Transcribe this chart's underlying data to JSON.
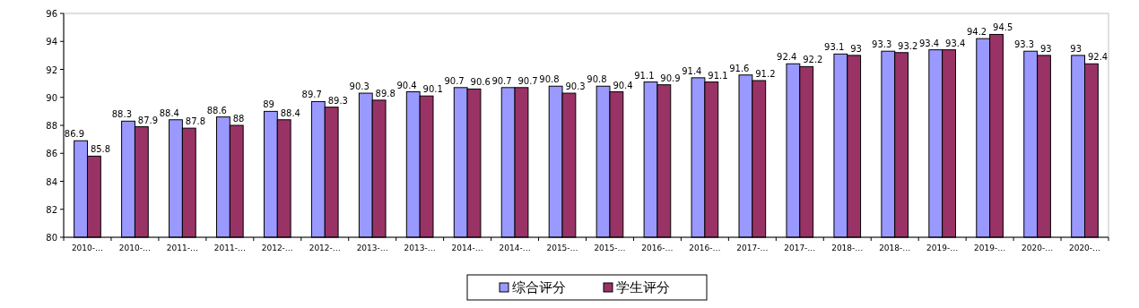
{
  "chart_data": {
    "type": "bar",
    "categories": [
      "2010-…",
      "2010-…",
      "2011-…",
      "2011-…",
      "2012-…",
      "2012-…",
      "2013-…",
      "2013-…",
      "2014-…",
      "2014-…",
      "2015-…",
      "2015-…",
      "2016-…",
      "2016-…",
      "2017-…",
      "2017-…",
      "2018-…",
      "2018-…",
      "2019-…",
      "2019-…",
      "2020-…",
      "2020-…"
    ],
    "series": [
      {
        "name": "综合评分",
        "color": "#9999ff",
        "values": [
          86.9,
          88.3,
          88.4,
          88.6,
          89,
          89.7,
          90.3,
          90.4,
          90.7,
          90.7,
          90.8,
          90.8,
          91.1,
          91.4,
          91.6,
          92.4,
          93.1,
          93.3,
          93.4,
          94.2,
          93.3,
          93
        ]
      },
      {
        "name": "学生评分",
        "color": "#993366",
        "values": [
          85.8,
          87.9,
          87.8,
          88,
          88.4,
          89.3,
          89.8,
          90.1,
          90.6,
          90.7,
          90.3,
          90.4,
          90.9,
          91.1,
          91.2,
          92.2,
          93,
          93.2,
          93.4,
          94.5,
          93,
          92.4
        ]
      }
    ],
    "ylim": [
      80,
      96
    ],
    "yticks": [
      80,
      82,
      84,
      86,
      88,
      90,
      92,
      94,
      96
    ],
    "data_labels": true,
    "legend": "bottom",
    "grid": false
  }
}
